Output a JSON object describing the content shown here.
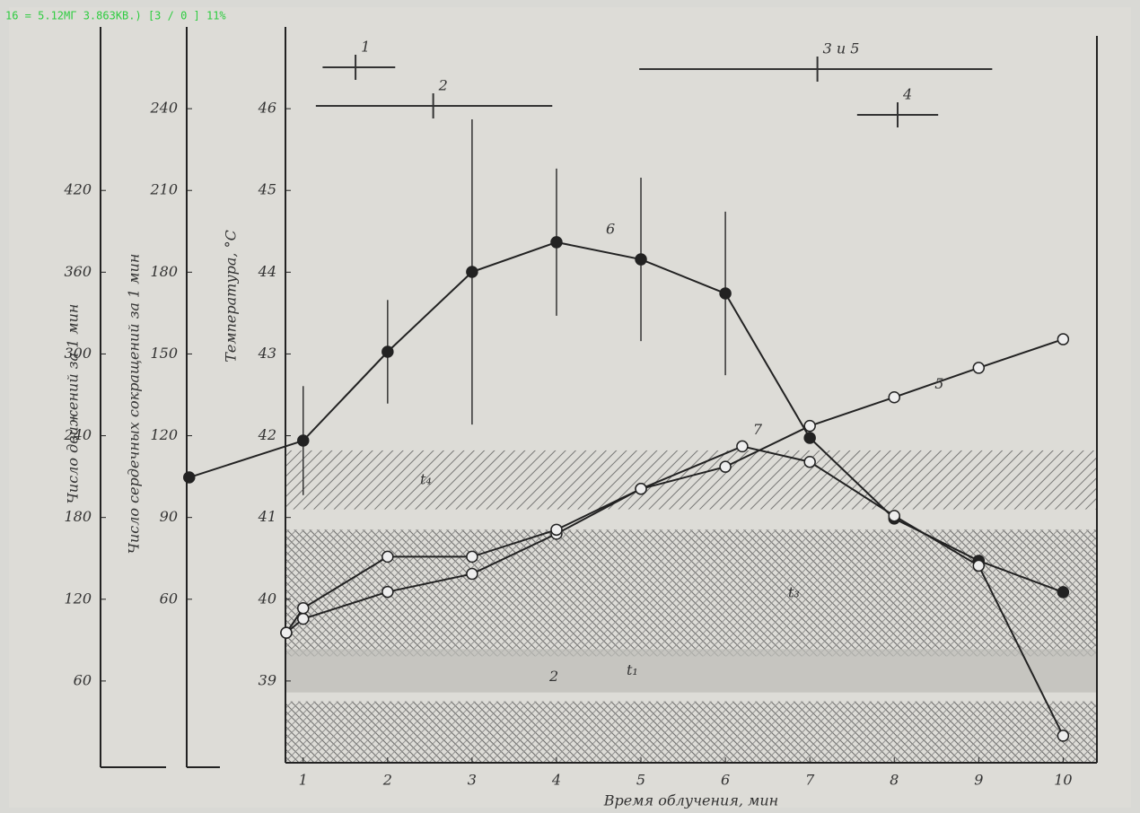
{
  "status": "16 = 5.12МГ   3.863КВ.) [3 / 0 ]  11%",
  "chart_data": {
    "type": "line",
    "xlabel": "Время облучения, мин",
    "ylabel": "Температура, °С",
    "y2label": "Число сердечных сокращений за 1 мин",
    "y3label": "Число движений за 1 мин",
    "xlim": [
      0.79,
      10.4
    ],
    "xticks": [
      1,
      2,
      3,
      4,
      5,
      6,
      7,
      8,
      9,
      10
    ],
    "ylim": [
      38,
      47
    ],
    "yticks": [
      39,
      40,
      41,
      42,
      43,
      44,
      45,
      46
    ],
    "y2lim": [
      0,
      270
    ],
    "y2ticks": [
      60,
      90,
      120,
      150,
      180,
      210,
      240
    ],
    "y3lim": [
      0,
      540
    ],
    "y3ticks": [
      60,
      120,
      180,
      240,
      300,
      360,
      420
    ],
    "series": [
      {
        "name": "6",
        "axis": "y2",
        "color": "#222",
        "marker": "filled",
        "x": [
          -0.35,
          1,
          2,
          3,
          4,
          5,
          6,
          7,
          8,
          9,
          10
        ],
        "values": [
          104.7,
          118.2,
          150.8,
          180.1,
          191,
          184.7,
          172.2,
          119.2,
          89.6,
          74.1,
          62.6
        ],
        "errors": [
          null,
          20,
          19,
          56,
          27,
          30,
          30,
          null,
          null,
          null,
          null
        ]
      },
      {
        "name": "5",
        "axis": "y",
        "color": "#222",
        "marker": "open",
        "x": [
          0.8,
          1,
          2,
          3,
          4,
          5,
          6,
          7,
          8,
          9,
          10
        ],
        "values": [
          39.59,
          39.76,
          40.09,
          40.31,
          40.8,
          41.35,
          41.62,
          42.12,
          42.47,
          42.83,
          43.18
        ]
      },
      {
        "name": "7",
        "axis": "y",
        "color": "#222",
        "marker": "open",
        "x": [
          0.8,
          1,
          2,
          3,
          4,
          5,
          6.2,
          7,
          8,
          9,
          10
        ],
        "values": [
          39.59,
          39.89,
          40.52,
          40.52,
          40.85,
          41.35,
          41.87,
          41.68,
          41.02,
          40.41,
          38.33
        ]
      }
    ],
    "bands": [
      {
        "from": 41.1,
        "to": 41.82,
        "label": "t₄"
      },
      {
        "from": 39.3,
        "to": 40.85,
        "label": "t₃"
      },
      {
        "from": 38.86,
        "to": 39.39,
        "label": "t₁"
      },
      {
        "from": 38,
        "to": 38.75
      }
    ],
    "ranges": [
      {
        "label": "1",
        "start": 1.23,
        "center": 1.62,
        "end": 2.09
      },
      {
        "label": "2",
        "start": 1.15,
        "center": 2.54,
        "end": 3.95
      },
      {
        "label": "3 и 5",
        "start": 4.98,
        "center": 7.09,
        "end": 9.16
      },
      {
        "label": "4",
        "start": 7.56,
        "center": 8.04,
        "end": 8.52
      }
    ],
    "annotations": [
      {
        "text": "2",
        "x": 4,
        "y": 39.05
      }
    ]
  }
}
